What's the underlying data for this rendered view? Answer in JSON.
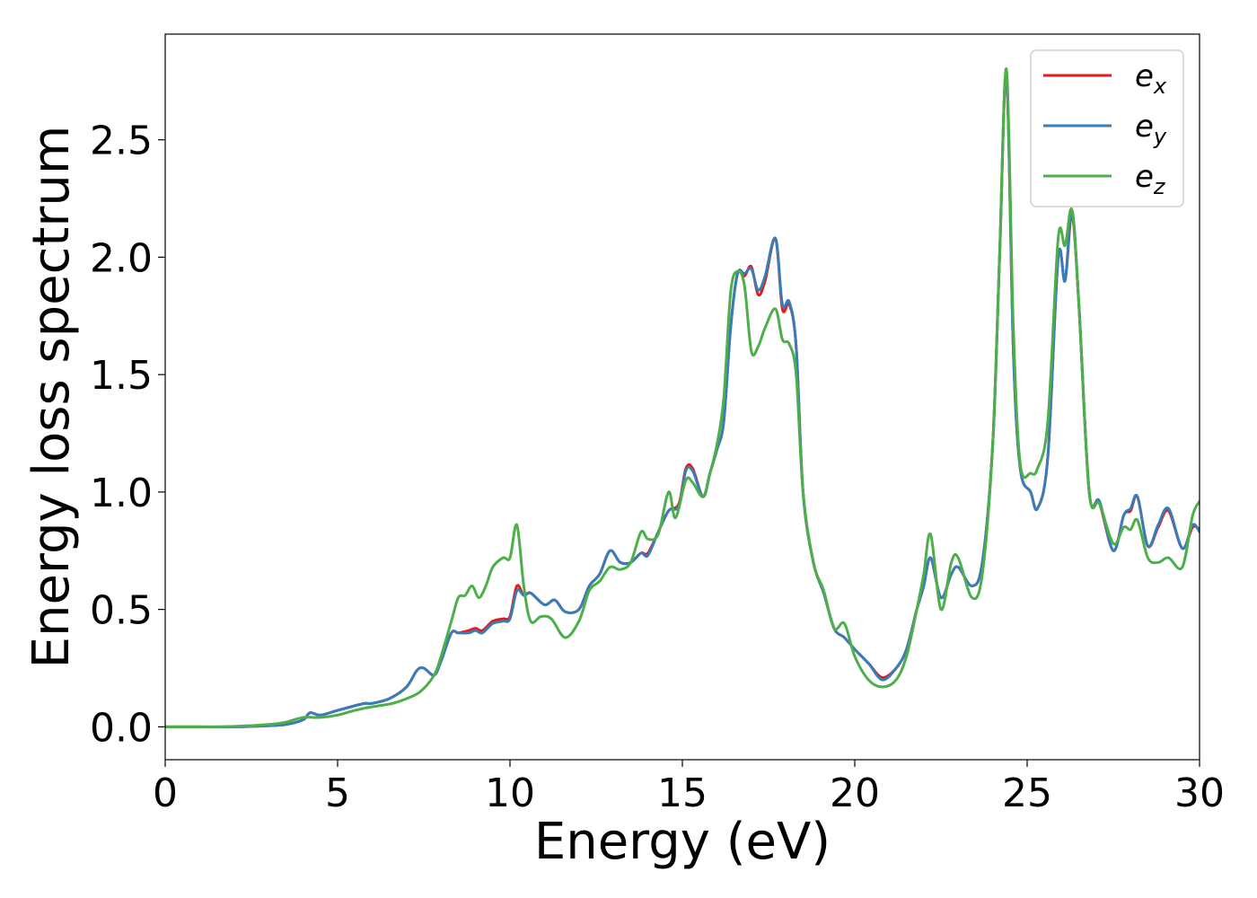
{
  "chart_data": {
    "type": "line",
    "title": "",
    "xlabel": "Energy (eV)",
    "ylabel": "Energy loss spectrum",
    "xlim": [
      0,
      30
    ],
    "ylim": [
      -0.14,
      2.95
    ],
    "xticks": [
      0,
      5,
      10,
      15,
      20,
      25,
      30
    ],
    "xtick_labels": [
      "0",
      "5",
      "10",
      "15",
      "20",
      "25",
      "30"
    ],
    "yticks": [
      0.0,
      0.5,
      1.0,
      1.5,
      2.0,
      2.5
    ],
    "ytick_labels": [
      "0.0",
      "0.5",
      "1.0",
      "1.5",
      "2.0",
      "2.5"
    ],
    "grid": false,
    "legend_position": "top-right",
    "series": [
      {
        "name": "e_x",
        "legend_base": "e",
        "legend_sub": "x",
        "color": "#e41a1c",
        "points": [
          [
            0,
            0.0
          ],
          [
            1,
            0.0
          ],
          [
            2,
            0.0
          ],
          [
            3,
            0.005
          ],
          [
            3.5,
            0.01
          ],
          [
            4,
            0.03
          ],
          [
            4.2,
            0.06
          ],
          [
            4.5,
            0.05
          ],
          [
            5,
            0.07
          ],
          [
            5.5,
            0.09
          ],
          [
            5.8,
            0.1
          ],
          [
            6,
            0.1
          ],
          [
            6.5,
            0.12
          ],
          [
            7,
            0.17
          ],
          [
            7.3,
            0.24
          ],
          [
            7.5,
            0.25
          ],
          [
            7.8,
            0.22
          ],
          [
            8,
            0.28
          ],
          [
            8.3,
            0.4
          ],
          [
            8.5,
            0.4
          ],
          [
            8.8,
            0.41
          ],
          [
            9,
            0.42
          ],
          [
            9.2,
            0.41
          ],
          [
            9.5,
            0.45
          ],
          [
            9.8,
            0.46
          ],
          [
            10,
            0.47
          ],
          [
            10.2,
            0.6
          ],
          [
            10.4,
            0.56
          ],
          [
            10.6,
            0.57
          ],
          [
            11,
            0.52
          ],
          [
            11.3,
            0.54
          ],
          [
            11.6,
            0.49
          ],
          [
            12,
            0.5
          ],
          [
            12.3,
            0.6
          ],
          [
            12.6,
            0.65
          ],
          [
            12.9,
            0.75
          ],
          [
            13.2,
            0.7
          ],
          [
            13.5,
            0.7
          ],
          [
            13.8,
            0.74
          ],
          [
            14,
            0.74
          ],
          [
            14.3,
            0.83
          ],
          [
            14.6,
            0.92
          ],
          [
            14.9,
            0.95
          ],
          [
            15.1,
            1.1
          ],
          [
            15.3,
            1.1
          ],
          [
            15.6,
            0.98
          ],
          [
            15.8,
            1.08
          ],
          [
            16,
            1.18
          ],
          [
            16.2,
            1.3
          ],
          [
            16.4,
            1.7
          ],
          [
            16.6,
            1.93
          ],
          [
            16.8,
            1.92
          ],
          [
            17,
            1.96
          ],
          [
            17.2,
            1.84
          ],
          [
            17.4,
            1.9
          ],
          [
            17.7,
            2.08
          ],
          [
            17.9,
            1.78
          ],
          [
            18.1,
            1.8
          ],
          [
            18.3,
            1.62
          ],
          [
            18.5,
            1.0
          ],
          [
            18.8,
            0.7
          ],
          [
            19.1,
            0.57
          ],
          [
            19.4,
            0.42
          ],
          [
            19.7,
            0.38
          ],
          [
            20,
            0.33
          ],
          [
            20.4,
            0.27
          ],
          [
            20.8,
            0.21
          ],
          [
            21.2,
            0.25
          ],
          [
            21.5,
            0.33
          ],
          [
            21.8,
            0.5
          ],
          [
            22,
            0.6
          ],
          [
            22.2,
            0.72
          ],
          [
            22.5,
            0.55
          ],
          [
            22.8,
            0.65
          ],
          [
            23,
            0.68
          ],
          [
            23.4,
            0.6
          ],
          [
            23.7,
            0.7
          ],
          [
            24,
            1.2
          ],
          [
            24.2,
            2.0
          ],
          [
            24.4,
            2.78
          ],
          [
            24.6,
            1.6
          ],
          [
            24.8,
            1.1
          ],
          [
            25.1,
            1.0
          ],
          [
            25.3,
            0.93
          ],
          [
            25.6,
            1.15
          ],
          [
            25.9,
            2.0
          ],
          [
            26.1,
            1.9
          ],
          [
            26.3,
            2.18
          ],
          [
            26.5,
            1.8
          ],
          [
            26.8,
            1.0
          ],
          [
            27.1,
            0.95
          ],
          [
            27.5,
            0.75
          ],
          [
            27.8,
            0.9
          ],
          [
            28,
            0.92
          ],
          [
            28.2,
            0.98
          ],
          [
            28.5,
            0.77
          ],
          [
            28.8,
            0.85
          ],
          [
            29.1,
            0.92
          ],
          [
            29.5,
            0.76
          ],
          [
            29.8,
            0.85
          ],
          [
            30,
            0.84
          ]
        ]
      },
      {
        "name": "e_y",
        "legend_base": "e",
        "legend_sub": "y",
        "color": "#377eb8",
        "points": [
          [
            0,
            0.0
          ],
          [
            1,
            0.0
          ],
          [
            2,
            0.0
          ],
          [
            3,
            0.005
          ],
          [
            3.5,
            0.01
          ],
          [
            4,
            0.03
          ],
          [
            4.2,
            0.06
          ],
          [
            4.5,
            0.05
          ],
          [
            5,
            0.07
          ],
          [
            5.5,
            0.09
          ],
          [
            5.8,
            0.1
          ],
          [
            6,
            0.1
          ],
          [
            6.5,
            0.12
          ],
          [
            7,
            0.17
          ],
          [
            7.3,
            0.24
          ],
          [
            7.5,
            0.25
          ],
          [
            7.8,
            0.22
          ],
          [
            8,
            0.28
          ],
          [
            8.3,
            0.4
          ],
          [
            8.5,
            0.4
          ],
          [
            8.8,
            0.4
          ],
          [
            9,
            0.41
          ],
          [
            9.2,
            0.4
          ],
          [
            9.5,
            0.44
          ],
          [
            9.8,
            0.45
          ],
          [
            10,
            0.46
          ],
          [
            10.2,
            0.58
          ],
          [
            10.4,
            0.56
          ],
          [
            10.6,
            0.57
          ],
          [
            11,
            0.52
          ],
          [
            11.3,
            0.54
          ],
          [
            11.6,
            0.49
          ],
          [
            12,
            0.5
          ],
          [
            12.3,
            0.6
          ],
          [
            12.6,
            0.65
          ],
          [
            12.9,
            0.75
          ],
          [
            13.2,
            0.7
          ],
          [
            13.5,
            0.7
          ],
          [
            13.8,
            0.74
          ],
          [
            14,
            0.73
          ],
          [
            14.3,
            0.83
          ],
          [
            14.6,
            0.92
          ],
          [
            14.9,
            0.94
          ],
          [
            15.1,
            1.09
          ],
          [
            15.3,
            1.09
          ],
          [
            15.6,
            0.98
          ],
          [
            15.8,
            1.08
          ],
          [
            16,
            1.18
          ],
          [
            16.2,
            1.3
          ],
          [
            16.4,
            1.7
          ],
          [
            16.6,
            1.93
          ],
          [
            16.8,
            1.93
          ],
          [
            17,
            1.95
          ],
          [
            17.2,
            1.86
          ],
          [
            17.4,
            1.92
          ],
          [
            17.7,
            2.08
          ],
          [
            17.9,
            1.8
          ],
          [
            18.1,
            1.81
          ],
          [
            18.3,
            1.62
          ],
          [
            18.5,
            1.0
          ],
          [
            18.8,
            0.7
          ],
          [
            19.1,
            0.57
          ],
          [
            19.4,
            0.42
          ],
          [
            19.7,
            0.38
          ],
          [
            20,
            0.33
          ],
          [
            20.4,
            0.27
          ],
          [
            20.8,
            0.2
          ],
          [
            21.2,
            0.25
          ],
          [
            21.5,
            0.33
          ],
          [
            21.8,
            0.5
          ],
          [
            22,
            0.6
          ],
          [
            22.2,
            0.72
          ],
          [
            22.5,
            0.55
          ],
          [
            22.8,
            0.65
          ],
          [
            23,
            0.68
          ],
          [
            23.4,
            0.6
          ],
          [
            23.7,
            0.7
          ],
          [
            24,
            1.2
          ],
          [
            24.2,
            2.0
          ],
          [
            24.4,
            2.78
          ],
          [
            24.6,
            1.6
          ],
          [
            24.8,
            1.1
          ],
          [
            25.1,
            1.0
          ],
          [
            25.3,
            0.93
          ],
          [
            25.6,
            1.15
          ],
          [
            25.9,
            2.0
          ],
          [
            26.1,
            1.9
          ],
          [
            26.3,
            2.2
          ],
          [
            26.5,
            1.8
          ],
          [
            26.8,
            1.0
          ],
          [
            27.1,
            0.96
          ],
          [
            27.5,
            0.75
          ],
          [
            27.8,
            0.9
          ],
          [
            28,
            0.93
          ],
          [
            28.2,
            0.98
          ],
          [
            28.5,
            0.77
          ],
          [
            28.8,
            0.86
          ],
          [
            29.1,
            0.93
          ],
          [
            29.5,
            0.76
          ],
          [
            29.8,
            0.86
          ],
          [
            30,
            0.83
          ]
        ]
      },
      {
        "name": "e_z",
        "legend_base": "e",
        "legend_sub": "z",
        "color": "#4daf4a",
        "points": [
          [
            0,
            0.0
          ],
          [
            1,
            0.0
          ],
          [
            2,
            0.002
          ],
          [
            3,
            0.01
          ],
          [
            3.5,
            0.02
          ],
          [
            4,
            0.04
          ],
          [
            4.5,
            0.04
          ],
          [
            5,
            0.05
          ],
          [
            5.5,
            0.07
          ],
          [
            5.8,
            0.08
          ],
          [
            6.2,
            0.09
          ],
          [
            6.6,
            0.1
          ],
          [
            7,
            0.12
          ],
          [
            7.4,
            0.15
          ],
          [
            7.8,
            0.22
          ],
          [
            8,
            0.3
          ],
          [
            8.3,
            0.45
          ],
          [
            8.5,
            0.55
          ],
          [
            8.7,
            0.56
          ],
          [
            8.9,
            0.6
          ],
          [
            9.1,
            0.55
          ],
          [
            9.3,
            0.6
          ],
          [
            9.5,
            0.68
          ],
          [
            9.8,
            0.72
          ],
          [
            10,
            0.72
          ],
          [
            10.2,
            0.86
          ],
          [
            10.4,
            0.6
          ],
          [
            10.6,
            0.45
          ],
          [
            10.9,
            0.47
          ],
          [
            11.2,
            0.46
          ],
          [
            11.6,
            0.38
          ],
          [
            12,
            0.45
          ],
          [
            12.3,
            0.58
          ],
          [
            12.6,
            0.62
          ],
          [
            12.9,
            0.68
          ],
          [
            13.2,
            0.67
          ],
          [
            13.5,
            0.7
          ],
          [
            13.8,
            0.83
          ],
          [
            14,
            0.8
          ],
          [
            14.3,
            0.82
          ],
          [
            14.6,
            1.0
          ],
          [
            14.8,
            0.89
          ],
          [
            15.1,
            1.05
          ],
          [
            15.3,
            1.04
          ],
          [
            15.6,
            0.98
          ],
          [
            15.8,
            1.08
          ],
          [
            16,
            1.2
          ],
          [
            16.2,
            1.4
          ],
          [
            16.4,
            1.85
          ],
          [
            16.6,
            1.94
          ],
          [
            16.8,
            1.88
          ],
          [
            17,
            1.6
          ],
          [
            17.2,
            1.62
          ],
          [
            17.4,
            1.7
          ],
          [
            17.7,
            1.78
          ],
          [
            17.9,
            1.65
          ],
          [
            18.1,
            1.63
          ],
          [
            18.3,
            1.5
          ],
          [
            18.5,
            1.0
          ],
          [
            18.8,
            0.7
          ],
          [
            19.1,
            0.58
          ],
          [
            19.4,
            0.42
          ],
          [
            19.7,
            0.44
          ],
          [
            20,
            0.3
          ],
          [
            20.4,
            0.2
          ],
          [
            20.8,
            0.17
          ],
          [
            21.2,
            0.2
          ],
          [
            21.5,
            0.3
          ],
          [
            21.8,
            0.5
          ],
          [
            22,
            0.65
          ],
          [
            22.2,
            0.82
          ],
          [
            22.5,
            0.5
          ],
          [
            22.8,
            0.7
          ],
          [
            23,
            0.72
          ],
          [
            23.4,
            0.55
          ],
          [
            23.7,
            0.65
          ],
          [
            24,
            1.2
          ],
          [
            24.2,
            2.0
          ],
          [
            24.4,
            2.8
          ],
          [
            24.6,
            1.7
          ],
          [
            24.8,
            1.12
          ],
          [
            25.1,
            1.08
          ],
          [
            25.3,
            1.1
          ],
          [
            25.6,
            1.3
          ],
          [
            25.9,
            2.08
          ],
          [
            26.1,
            2.05
          ],
          [
            26.3,
            2.2
          ],
          [
            26.5,
            1.8
          ],
          [
            26.8,
            1.0
          ],
          [
            27.1,
            0.95
          ],
          [
            27.5,
            0.78
          ],
          [
            27.8,
            0.85
          ],
          [
            28,
            0.84
          ],
          [
            28.2,
            0.88
          ],
          [
            28.5,
            0.72
          ],
          [
            28.8,
            0.7
          ],
          [
            29.1,
            0.72
          ],
          [
            29.5,
            0.68
          ],
          [
            29.8,
            0.9
          ],
          [
            30,
            0.96
          ]
        ]
      }
    ]
  }
}
